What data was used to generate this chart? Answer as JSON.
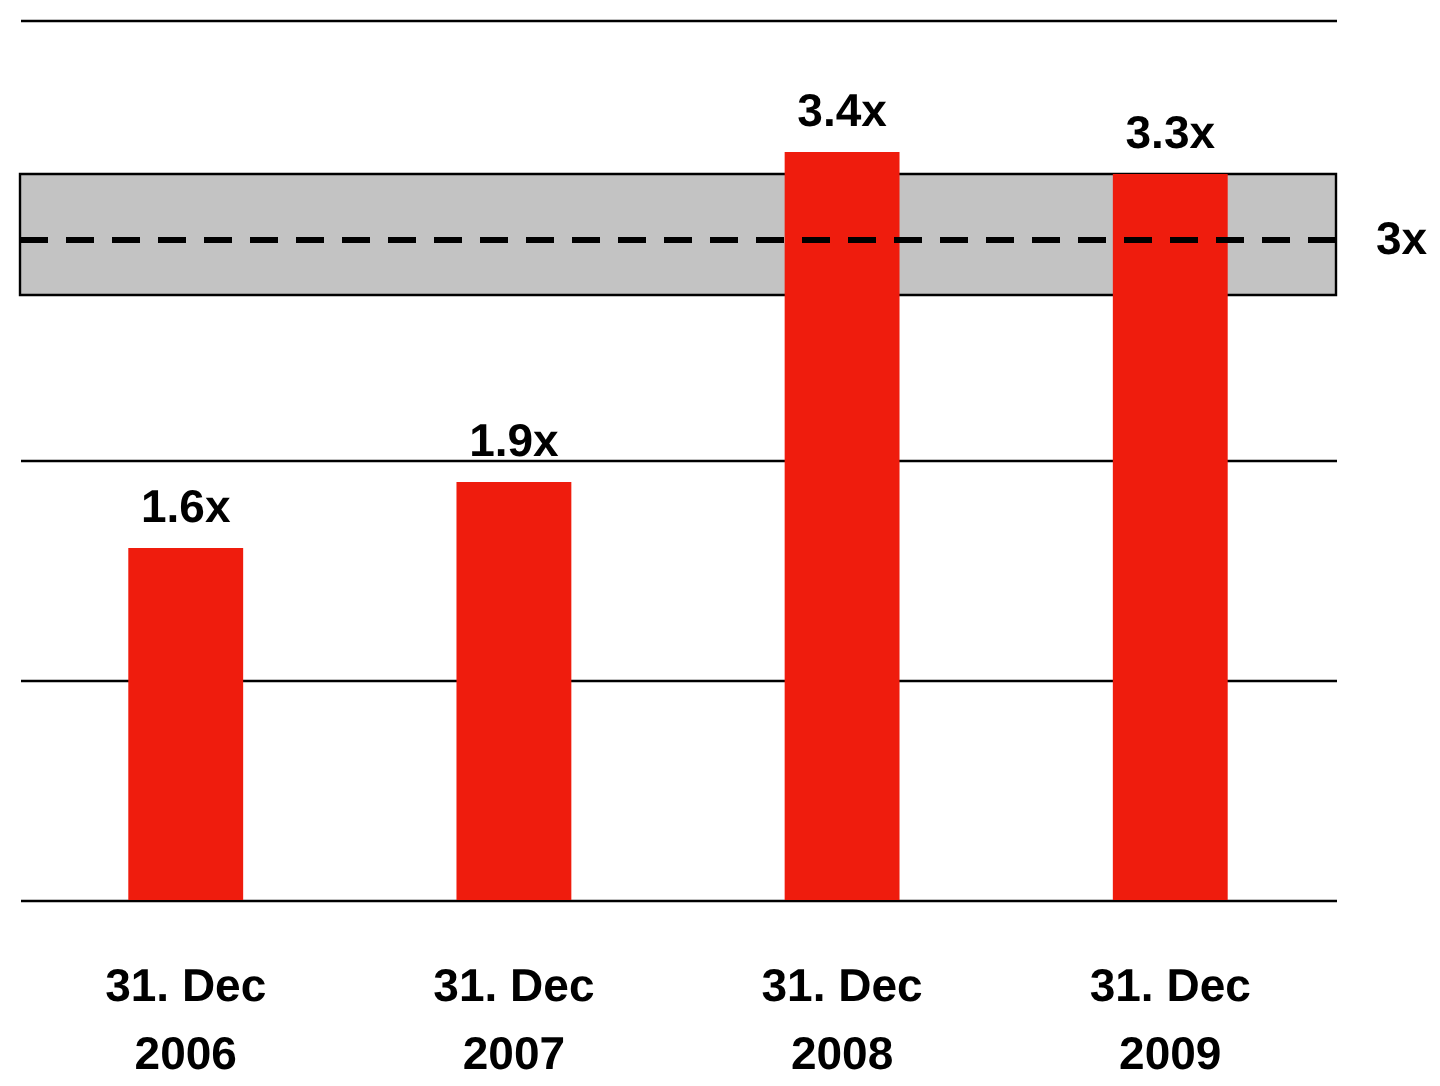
{
  "chart_data": {
    "type": "bar",
    "categories": [
      "31. Dec 2006",
      "31. Dec 2007",
      "31. Dec 2008",
      "31. Dec 2009"
    ],
    "values": [
      1.6,
      1.9,
      3.4,
      3.3
    ],
    "color": "#ef1c0d",
    "value_labels": [
      "1.6x",
      "1.9x",
      "3.4x",
      "3.3x"
    ],
    "ylim": [
      0,
      4
    ],
    "yticks": [
      {
        "value": 0,
        "label": null
      },
      {
        "value": 1,
        "label": null
      },
      {
        "value": 2,
        "label": null
      },
      {
        "value": 3,
        "label": null
      },
      {
        "value": 4,
        "label": null
      }
    ],
    "grid": "y",
    "tick_labels": "x",
    "bands": [
      {
        "axis": "y",
        "from": 2.75,
        "to": 3.3,
        "color": "#c3c3c3"
      }
    ],
    "ref_lines": [
      {
        "axis": "y",
        "value": 3,
        "label": "3x",
        "line_style": "dashed"
      }
    ]
  }
}
